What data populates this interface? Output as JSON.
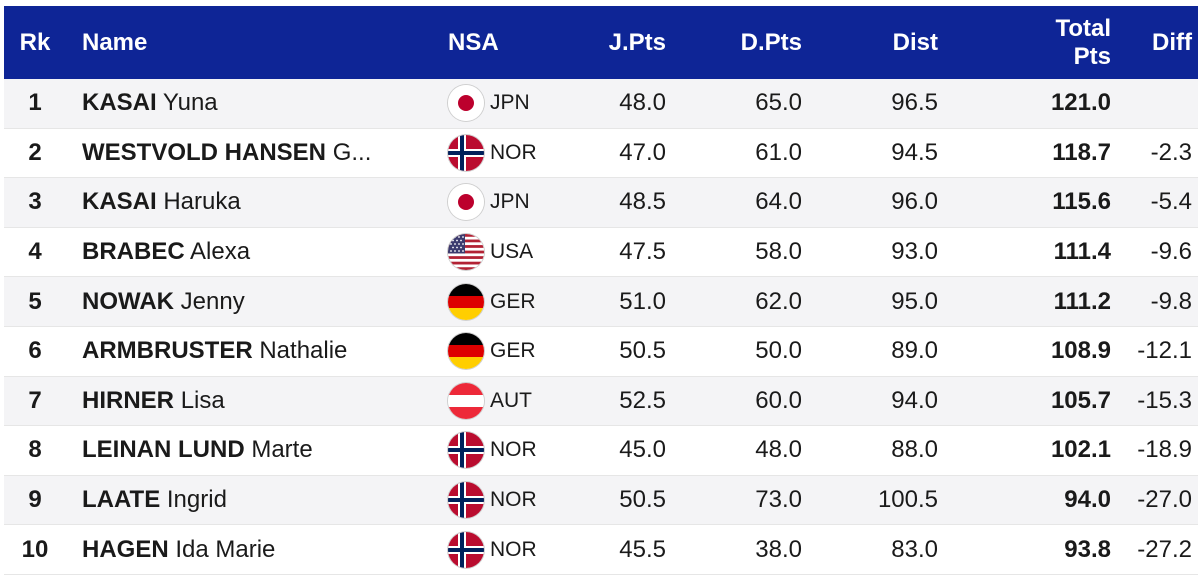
{
  "header": {
    "rk": "Rk",
    "name": "Name",
    "nsa": "NSA",
    "jpts": "J.Pts",
    "dpts": "D.Pts",
    "dist": "Dist",
    "total_line1": "Total",
    "total_line2": "Pts",
    "diff": "Diff"
  },
  "rows": [
    {
      "rk": "1",
      "last": "KASAI",
      "first": "Yuna",
      "flag": "jpn-flag-icon",
      "nsa": "JPN",
      "jpts": "48.0",
      "dpts": "65.0",
      "dist": "96.5",
      "total": "121.0",
      "diff": ""
    },
    {
      "rk": "2",
      "last": "WESTVOLD HANSEN",
      "first": "G...",
      "flag": "nor-flag-icon",
      "nsa": "NOR",
      "jpts": "47.0",
      "dpts": "61.0",
      "dist": "94.5",
      "total": "118.7",
      "diff": "-2.3"
    },
    {
      "rk": "3",
      "last": "KASAI",
      "first": "Haruka",
      "flag": "jpn-flag-icon",
      "nsa": "JPN",
      "jpts": "48.5",
      "dpts": "64.0",
      "dist": "96.0",
      "total": "115.6",
      "diff": "-5.4"
    },
    {
      "rk": "4",
      "last": "BRABEC",
      "first": "Alexa",
      "flag": "usa-flag-icon",
      "nsa": "USA",
      "jpts": "47.5",
      "dpts": "58.0",
      "dist": "93.0",
      "total": "111.4",
      "diff": "-9.6"
    },
    {
      "rk": "5",
      "last": "NOWAK",
      "first": "Jenny",
      "flag": "ger-flag-icon",
      "nsa": "GER",
      "jpts": "51.0",
      "dpts": "62.0",
      "dist": "95.0",
      "total": "111.2",
      "diff": "-9.8"
    },
    {
      "rk": "6",
      "last": "ARMBRUSTER",
      "first": "Nathalie",
      "flag": "ger-flag-icon",
      "nsa": "GER",
      "jpts": "50.5",
      "dpts": "50.0",
      "dist": "89.0",
      "total": "108.9",
      "diff": "-12.1"
    },
    {
      "rk": "7",
      "last": "HIRNER",
      "first": "Lisa",
      "flag": "aut-flag-icon",
      "nsa": "AUT",
      "jpts": "52.5",
      "dpts": "60.0",
      "dist": "94.0",
      "total": "105.7",
      "diff": "-15.3"
    },
    {
      "rk": "8",
      "last": "LEINAN LUND",
      "first": "Marte",
      "flag": "nor-flag-icon",
      "nsa": "NOR",
      "jpts": "45.0",
      "dpts": "48.0",
      "dist": "88.0",
      "total": "102.1",
      "diff": "-18.9"
    },
    {
      "rk": "9",
      "last": "LAATE",
      "first": "Ingrid",
      "flag": "nor-flag-icon",
      "nsa": "NOR",
      "jpts": "50.5",
      "dpts": "73.0",
      "dist": "100.5",
      "total": "94.0",
      "diff": "-27.0"
    },
    {
      "rk": "10",
      "last": "HAGEN",
      "first": "Ida Marie",
      "flag": "nor-flag-icon",
      "nsa": "NOR",
      "jpts": "45.5",
      "dpts": "38.0",
      "dist": "83.0",
      "total": "93.8",
      "diff": "-27.2"
    }
  ],
  "colors": {
    "header_bg": "#0e2596",
    "header_text": "#ffffff",
    "row_alt_bg": "#f4f4f6"
  }
}
